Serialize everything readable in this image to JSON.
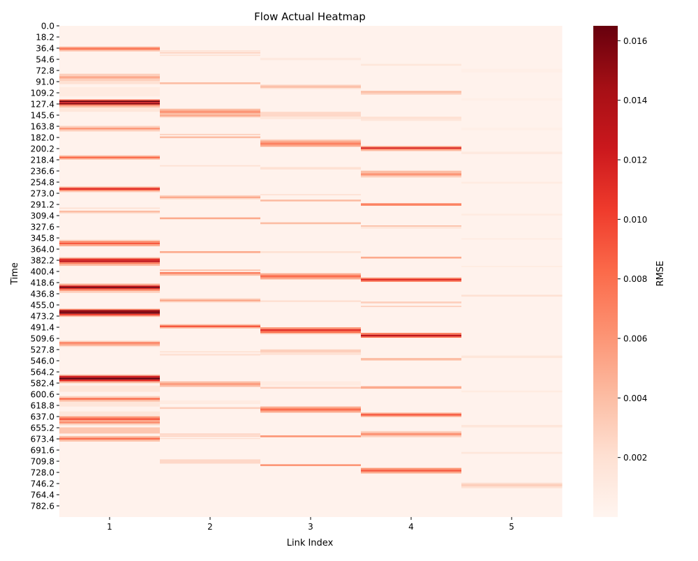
{
  "chart_data": {
    "type": "heatmap",
    "title": "Flow Actual Heatmap",
    "xlabel": "Link Index",
    "ylabel": "Time",
    "colorbar_label": "RMSE",
    "colormap": "Reds",
    "color_low": "#fff5f0",
    "color_high": "#67000d",
    "vmin": 0.0,
    "vmax": 0.0165,
    "colorbar_ticks": [
      "0.002",
      "0.004",
      "0.006",
      "0.008",
      "0.010",
      "0.012",
      "0.014",
      "0.016"
    ],
    "columns": [
      "1",
      "2",
      "3",
      "4",
      "5"
    ],
    "time_ticks": [
      "0.0",
      "18.2",
      "36.4",
      "54.6",
      "72.8",
      "91.0",
      "109.2",
      "127.4",
      "145.6",
      "163.8",
      "182.0",
      "200.2",
      "218.4",
      "236.6",
      "254.8",
      "273.0",
      "291.2",
      "309.4",
      "327.6",
      "345.8",
      "364.0",
      "382.2",
      "400.4",
      "418.6",
      "436.8",
      "455.0",
      "473.2",
      "491.4",
      "509.6",
      "527.8",
      "546.0",
      "564.2",
      "582.4",
      "600.6",
      "618.8",
      "637.0",
      "655.2",
      "673.4",
      "691.6",
      "709.8",
      "728.0",
      "746.2",
      "764.4",
      "782.6"
    ],
    "time_range": [
      0,
      800
    ],
    "background_value": 0.0003,
    "bands": [
      [
        {
          "t0": 34,
          "t1": 36,
          "v": 0.005
        },
        {
          "t0": 36,
          "t1": 38,
          "v": 0.008
        },
        {
          "t0": 38,
          "t1": 40,
          "v": 0.006
        },
        {
          "t0": 40,
          "t1": 42,
          "v": 0.003
        },
        {
          "t0": 78,
          "t1": 82,
          "v": 0.003
        },
        {
          "t0": 82,
          "t1": 86,
          "v": 0.005
        },
        {
          "t0": 86,
          "t1": 90,
          "v": 0.003
        },
        {
          "t0": 90,
          "t1": 95,
          "v": 0.002
        },
        {
          "t0": 100,
          "t1": 115,
          "v": 0.001
        },
        {
          "t0": 120,
          "t1": 122,
          "v": 0.009
        },
        {
          "t0": 122,
          "t1": 124,
          "v": 0.0165
        },
        {
          "t0": 124,
          "t1": 126,
          "v": 0.012
        },
        {
          "t0": 126,
          "t1": 128,
          "v": 0.0155
        },
        {
          "t0": 128,
          "t1": 130,
          "v": 0.008
        },
        {
          "t0": 130,
          "t1": 133,
          "v": 0.004
        },
        {
          "t0": 133,
          "t1": 140,
          "v": 0.0015
        },
        {
          "t0": 163,
          "t1": 166,
          "v": 0.003
        },
        {
          "t0": 166,
          "t1": 169,
          "v": 0.006
        },
        {
          "t0": 169,
          "t1": 172,
          "v": 0.003
        },
        {
          "t0": 211,
          "t1": 213,
          "v": 0.004
        },
        {
          "t0": 213,
          "t1": 216,
          "v": 0.008
        },
        {
          "t0": 216,
          "t1": 218,
          "v": 0.004
        },
        {
          "t0": 262,
          "t1": 264,
          "v": 0.005
        },
        {
          "t0": 264,
          "t1": 267,
          "v": 0.011
        },
        {
          "t0": 267,
          "t1": 269,
          "v": 0.007
        },
        {
          "t0": 269,
          "t1": 271,
          "v": 0.003
        },
        {
          "t0": 296,
          "t1": 298,
          "v": 0.002
        },
        {
          "t0": 301,
          "t1": 304,
          "v": 0.004
        },
        {
          "t0": 304,
          "t1": 306,
          "v": 0.002
        },
        {
          "t0": 348,
          "t1": 350,
          "v": 0.002
        },
        {
          "t0": 350,
          "t1": 353,
          "v": 0.006
        },
        {
          "t0": 353,
          "t1": 356,
          "v": 0.009
        },
        {
          "t0": 356,
          "t1": 359,
          "v": 0.005
        },
        {
          "t0": 377,
          "t1": 379,
          "v": 0.004
        },
        {
          "t0": 379,
          "t1": 382,
          "v": 0.011
        },
        {
          "t0": 382,
          "t1": 385,
          "v": 0.013
        },
        {
          "t0": 385,
          "t1": 388,
          "v": 0.007
        },
        {
          "t0": 388,
          "t1": 391,
          "v": 0.004
        },
        {
          "t0": 420,
          "t1": 423,
          "v": 0.005
        },
        {
          "t0": 423,
          "t1": 425,
          "v": 0.012
        },
        {
          "t0": 425,
          "t1": 427,
          "v": 0.0165
        },
        {
          "t0": 427,
          "t1": 429,
          "v": 0.011
        },
        {
          "t0": 429,
          "t1": 432,
          "v": 0.006
        },
        {
          "t0": 432,
          "t1": 435,
          "v": 0.003
        },
        {
          "t0": 461,
          "t1": 463,
          "v": 0.007
        },
        {
          "t0": 463,
          "t1": 466,
          "v": 0.015
        },
        {
          "t0": 466,
          "t1": 469,
          "v": 0.016
        },
        {
          "t0": 469,
          "t1": 472,
          "v": 0.01
        },
        {
          "t0": 472,
          "t1": 474,
          "v": 0.004
        },
        {
          "t0": 513,
          "t1": 515,
          "v": 0.003
        },
        {
          "t0": 515,
          "t1": 518,
          "v": 0.007
        },
        {
          "t0": 518,
          "t1": 521,
          "v": 0.005
        },
        {
          "t0": 521,
          "t1": 523,
          "v": 0.002
        },
        {
          "t0": 568,
          "t1": 570,
          "v": 0.004
        },
        {
          "t0": 570,
          "t1": 573,
          "v": 0.012
        },
        {
          "t0": 573,
          "t1": 576,
          "v": 0.0165
        },
        {
          "t0": 576,
          "t1": 579,
          "v": 0.011
        },
        {
          "t0": 579,
          "t1": 582,
          "v": 0.004
        },
        {
          "t0": 586,
          "t1": 596,
          "v": 0.0015
        },
        {
          "t0": 603,
          "t1": 606,
          "v": 0.003
        },
        {
          "t0": 606,
          "t1": 609,
          "v": 0.008
        },
        {
          "t0": 609,
          "t1": 612,
          "v": 0.004
        },
        {
          "t0": 612,
          "t1": 620,
          "v": 0.0015
        },
        {
          "t0": 628,
          "t1": 636,
          "v": 0.0015
        },
        {
          "t0": 636,
          "t1": 639,
          "v": 0.006
        },
        {
          "t0": 639,
          "t1": 642,
          "v": 0.009
        },
        {
          "t0": 642,
          "t1": 645,
          "v": 0.005
        },
        {
          "t0": 645,
          "t1": 647,
          "v": 0.007
        },
        {
          "t0": 647,
          "t1": 649,
          "v": 0.004
        },
        {
          "t0": 649,
          "t1": 651,
          "v": 0.002
        },
        {
          "t0": 654,
          "t1": 664,
          "v": 0.0035
        },
        {
          "t0": 668,
          "t1": 671,
          "v": 0.004
        },
        {
          "t0": 671,
          "t1": 674,
          "v": 0.008
        },
        {
          "t0": 674,
          "t1": 677,
          "v": 0.004
        }
      ],
      [
        {
          "t0": 40,
          "t1": 42,
          "v": 0.002
        },
        {
          "t0": 43,
          "t1": 45,
          "v": 0.003
        },
        {
          "t0": 47,
          "t1": 49,
          "v": 0.002
        },
        {
          "t0": 92,
          "t1": 95,
          "v": 0.004
        },
        {
          "t0": 135,
          "t1": 138,
          "v": 0.004
        },
        {
          "t0": 138,
          "t1": 142,
          "v": 0.006
        },
        {
          "t0": 142,
          "t1": 145,
          "v": 0.004
        },
        {
          "t0": 145,
          "t1": 148,
          "v": 0.005
        },
        {
          "t0": 148,
          "t1": 150,
          "v": 0.002
        },
        {
          "t0": 176,
          "t1": 178,
          "v": 0.003
        },
        {
          "t0": 180,
          "t1": 183,
          "v": 0.004
        },
        {
          "t0": 227,
          "t1": 229,
          "v": 0.002
        },
        {
          "t0": 276,
          "t1": 278,
          "v": 0.003
        },
        {
          "t0": 278,
          "t1": 281,
          "v": 0.005
        },
        {
          "t0": 281,
          "t1": 283,
          "v": 0.002
        },
        {
          "t0": 312,
          "t1": 315,
          "v": 0.005
        },
        {
          "t0": 367,
          "t1": 370,
          "v": 0.005
        },
        {
          "t0": 397,
          "t1": 399,
          "v": 0.004
        },
        {
          "t0": 401,
          "t1": 404,
          "v": 0.007
        },
        {
          "t0": 404,
          "t1": 407,
          "v": 0.004
        },
        {
          "t0": 444,
          "t1": 446,
          "v": 0.003
        },
        {
          "t0": 446,
          "t1": 449,
          "v": 0.005
        },
        {
          "t0": 449,
          "t1": 451,
          "v": 0.002
        },
        {
          "t0": 486,
          "t1": 488,
          "v": 0.004
        },
        {
          "t0": 488,
          "t1": 491,
          "v": 0.009
        },
        {
          "t0": 491,
          "t1": 493,
          "v": 0.004
        },
        {
          "t0": 530,
          "t1": 532,
          "v": 0.002
        },
        {
          "t0": 534,
          "t1": 537,
          "v": 0.002
        },
        {
          "t0": 579,
          "t1": 582,
          "v": 0.004
        },
        {
          "t0": 582,
          "t1": 585,
          "v": 0.006
        },
        {
          "t0": 585,
          "t1": 588,
          "v": 0.004
        },
        {
          "t0": 610,
          "t1": 616,
          "v": 0.001
        },
        {
          "t0": 621,
          "t1": 624,
          "v": 0.003
        },
        {
          "t0": 664,
          "t1": 666,
          "v": 0.003
        },
        {
          "t0": 667,
          "t1": 669,
          "v": 0.003
        },
        {
          "t0": 671,
          "t1": 673,
          "v": 0.002
        },
        {
          "t0": 706,
          "t1": 713,
          "v": 0.0025
        }
      ],
      [
        {
          "t0": 52,
          "t1": 56,
          "v": 0.0012
        },
        {
          "t0": 96,
          "t1": 98,
          "v": 0.003
        },
        {
          "t0": 98,
          "t1": 101,
          "v": 0.004
        },
        {
          "t0": 101,
          "t1": 103,
          "v": 0.002
        },
        {
          "t0": 140,
          "t1": 148,
          "v": 0.0025
        },
        {
          "t0": 148,
          "t1": 152,
          "v": 0.0015
        },
        {
          "t0": 185,
          "t1": 187,
          "v": 0.003
        },
        {
          "t0": 187,
          "t1": 190,
          "v": 0.005
        },
        {
          "t0": 190,
          "t1": 194,
          "v": 0.007
        },
        {
          "t0": 194,
          "t1": 197,
          "v": 0.005
        },
        {
          "t0": 230,
          "t1": 234,
          "v": 0.002
        },
        {
          "t0": 274,
          "t1": 276,
          "v": 0.002
        },
        {
          "t0": 283,
          "t1": 286,
          "v": 0.004
        },
        {
          "t0": 320,
          "t1": 323,
          "v": 0.004
        },
        {
          "t0": 367,
          "t1": 370,
          "v": 0.002
        },
        {
          "t0": 403,
          "t1": 406,
          "v": 0.005
        },
        {
          "t0": 406,
          "t1": 410,
          "v": 0.008
        },
        {
          "t0": 410,
          "t1": 413,
          "v": 0.005
        },
        {
          "t0": 447,
          "t1": 450,
          "v": 0.002
        },
        {
          "t0": 491,
          "t1": 494,
          "v": 0.006
        },
        {
          "t0": 494,
          "t1": 497,
          "v": 0.011
        },
        {
          "t0": 497,
          "t1": 500,
          "v": 0.008
        },
        {
          "t0": 500,
          "t1": 502,
          "v": 0.004
        },
        {
          "t0": 527,
          "t1": 532,
          "v": 0.003
        },
        {
          "t0": 532,
          "t1": 536,
          "v": 0.002
        },
        {
          "t0": 579,
          "t1": 586,
          "v": 0.001
        },
        {
          "t0": 588,
          "t1": 591,
          "v": 0.003
        },
        {
          "t0": 620,
          "t1": 623,
          "v": 0.005
        },
        {
          "t0": 623,
          "t1": 627,
          "v": 0.008
        },
        {
          "t0": 627,
          "t1": 630,
          "v": 0.005
        },
        {
          "t0": 667,
          "t1": 670,
          "v": 0.006
        },
        {
          "t0": 714,
          "t1": 717,
          "v": 0.006
        }
      ],
      [
        {
          "t0": 62,
          "t1": 65,
          "v": 0.0015
        },
        {
          "t0": 106,
          "t1": 109,
          "v": 0.004
        },
        {
          "t0": 109,
          "t1": 112,
          "v": 0.003
        },
        {
          "t0": 148,
          "t1": 152,
          "v": 0.002
        },
        {
          "t0": 152,
          "t1": 155,
          "v": 0.0015
        },
        {
          "t0": 196,
          "t1": 198,
          "v": 0.006
        },
        {
          "t0": 198,
          "t1": 200,
          "v": 0.012
        },
        {
          "t0": 200,
          "t1": 202,
          "v": 0.007
        },
        {
          "t0": 202,
          "t1": 204,
          "v": 0.004
        },
        {
          "t0": 236,
          "t1": 240,
          "v": 0.004
        },
        {
          "t0": 240,
          "t1": 244,
          "v": 0.006
        },
        {
          "t0": 244,
          "t1": 247,
          "v": 0.003
        },
        {
          "t0": 289,
          "t1": 293,
          "v": 0.007
        },
        {
          "t0": 325,
          "t1": 327,
          "v": 0.004
        },
        {
          "t0": 328,
          "t1": 330,
          "v": 0.002
        },
        {
          "t0": 376,
          "t1": 379,
          "v": 0.005
        },
        {
          "t0": 410,
          "t1": 412,
          "v": 0.006
        },
        {
          "t0": 412,
          "t1": 415,
          "v": 0.011
        },
        {
          "t0": 415,
          "t1": 417,
          "v": 0.007
        },
        {
          "t0": 449,
          "t1": 452,
          "v": 0.003
        },
        {
          "t0": 456,
          "t1": 458,
          "v": 0.003
        },
        {
          "t0": 500,
          "t1": 503,
          "v": 0.007
        },
        {
          "t0": 503,
          "t1": 506,
          "v": 0.013
        },
        {
          "t0": 506,
          "t1": 508,
          "v": 0.008
        },
        {
          "t0": 541,
          "t1": 545,
          "v": 0.004
        },
        {
          "t0": 587,
          "t1": 591,
          "v": 0.005
        },
        {
          "t0": 630,
          "t1": 632,
          "v": 0.005
        },
        {
          "t0": 632,
          "t1": 635,
          "v": 0.009
        },
        {
          "t0": 635,
          "t1": 637,
          "v": 0.005
        },
        {
          "t0": 660,
          "t1": 663,
          "v": 0.003
        },
        {
          "t0": 663,
          "t1": 667,
          "v": 0.006
        },
        {
          "t0": 667,
          "t1": 670,
          "v": 0.003
        },
        {
          "t0": 720,
          "t1": 723,
          "v": 0.006
        },
        {
          "t0": 723,
          "t1": 726,
          "v": 0.009
        },
        {
          "t0": 726,
          "t1": 729,
          "v": 0.005
        }
      ],
      [
        {
          "t0": 70,
          "t1": 76,
          "v": 0.0006
        },
        {
          "t0": 118,
          "t1": 122,
          "v": 0.0006
        },
        {
          "t0": 166,
          "t1": 170,
          "v": 0.0006
        },
        {
          "t0": 205,
          "t1": 209,
          "v": 0.0012
        },
        {
          "t0": 254,
          "t1": 257,
          "v": 0.001
        },
        {
          "t0": 306,
          "t1": 309,
          "v": 0.001
        },
        {
          "t0": 346,
          "t1": 348,
          "v": 0.001
        },
        {
          "t0": 391,
          "t1": 393,
          "v": 0.001
        },
        {
          "t0": 438,
          "t1": 441,
          "v": 0.002
        },
        {
          "t0": 537,
          "t1": 541,
          "v": 0.0015
        },
        {
          "t0": 594,
          "t1": 597,
          "v": 0.001
        },
        {
          "t0": 650,
          "t1": 654,
          "v": 0.0015
        },
        {
          "t0": 694,
          "t1": 697,
          "v": 0.0015
        },
        {
          "t0": 744,
          "t1": 746,
          "v": 0.002
        },
        {
          "t0": 746,
          "t1": 750,
          "v": 0.003
        },
        {
          "t0": 750,
          "t1": 753,
          "v": 0.002
        }
      ]
    ]
  }
}
